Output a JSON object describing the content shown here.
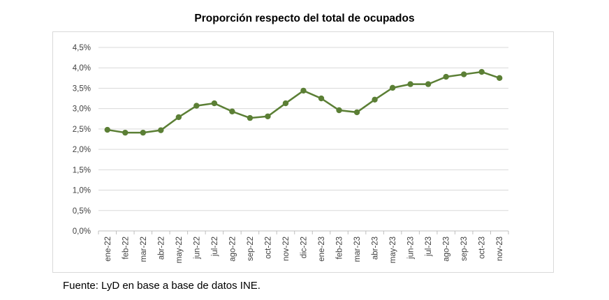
{
  "chart_data": {
    "type": "line",
    "title": "Proporción respecto del total de ocupados",
    "xlabel": "",
    "ylabel": "",
    "ylim": [
      0,
      4.5
    ],
    "yticks": [
      "0,0%",
      "0,5%",
      "1,0%",
      "1,5%",
      "2,0%",
      "2,5%",
      "3,0%",
      "3,5%",
      "4,0%",
      "4,5%"
    ],
    "grid": true,
    "legend": "none",
    "categories": [
      "ene-22",
      "feb-22",
      "mar-22",
      "abr-22",
      "may-22",
      "jun-22",
      "jul-22",
      "ago-22",
      "sep-22",
      "oct-22",
      "nov-22",
      "dic-22",
      "ene-23",
      "feb-23",
      "mar-23",
      "abr-23",
      "may-23",
      "jun-23",
      "jul-23",
      "ago-23",
      "sep-23",
      "oct-23",
      "nov-23"
    ],
    "series": [
      {
        "name": "Proporción",
        "color": "#5b7f35",
        "values": [
          2.48,
          2.41,
          2.41,
          2.47,
          2.79,
          3.07,
          3.13,
          2.93,
          2.77,
          2.81,
          3.13,
          3.44,
          3.25,
          2.96,
          2.91,
          3.22,
          3.51,
          3.6,
          3.6,
          3.78,
          3.84,
          3.9,
          3.75
        ]
      }
    ]
  },
  "source": "Fuente: LyD en base a base de datos INE."
}
